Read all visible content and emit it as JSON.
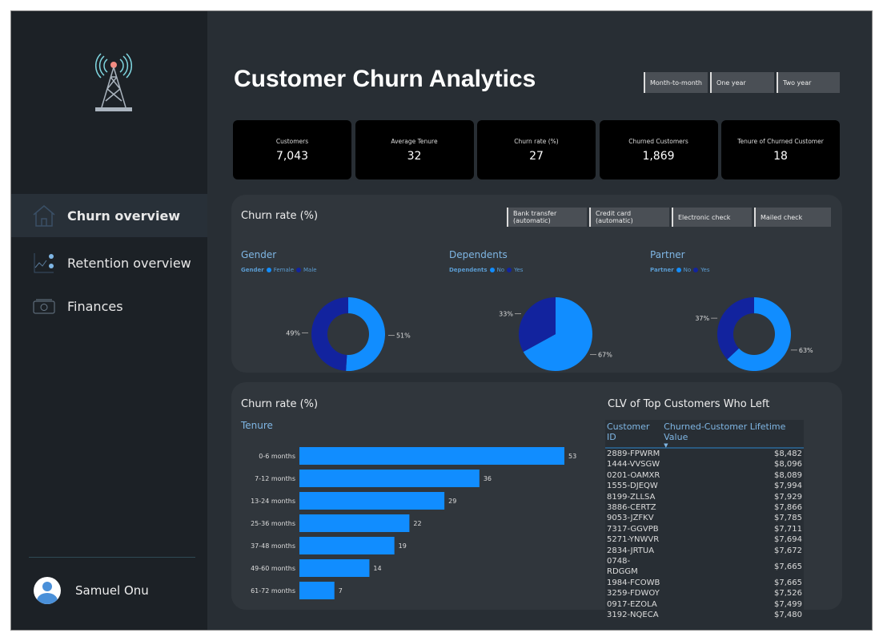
{
  "sidebar": {
    "items": [
      {
        "label": "Churn overview",
        "icon": "home-icon"
      },
      {
        "label": "Retention overview",
        "icon": "chart-icon"
      },
      {
        "label": "Finances",
        "icon": "money-icon"
      }
    ],
    "user": "Samuel Onu"
  },
  "header": {
    "title": "Customer Churn Analytics",
    "contract_slicers": [
      "Month-to-month",
      "One year",
      "Two year"
    ]
  },
  "kpis": [
    {
      "label": "Customers",
      "value": "7,043"
    },
    {
      "label": "Average Tenure",
      "value": "32"
    },
    {
      "label": "Churn rate (%)",
      "value": "27"
    },
    {
      "label": "Churned Customers",
      "value": "1,869"
    },
    {
      "label": "Tenure of Churned Customer",
      "value": "18"
    }
  ],
  "payment_slicers": [
    "Bank transfer (automatic)",
    "Credit card (automatic)",
    "Electronic check",
    "Mailed check"
  ],
  "colors": {
    "light": "#118dff",
    "dark": "#12239e"
  },
  "chart_data": [
    {
      "type": "pie",
      "title": "Churn rate (%)",
      "subtitle": "Gender",
      "legend_title": "Gender",
      "donut": true,
      "categories": [
        "Female",
        "Male"
      ],
      "values": [
        51,
        49
      ],
      "labels": [
        "51%",
        "49%"
      ]
    },
    {
      "type": "pie",
      "subtitle": "Dependents",
      "legend_title": "Dependents",
      "donut": false,
      "categories": [
        "No",
        "Yes"
      ],
      "values": [
        67,
        33
      ],
      "labels": [
        "67%",
        "33%"
      ]
    },
    {
      "type": "pie",
      "subtitle": "Partner",
      "legend_title": "Partner",
      "donut": true,
      "categories": [
        "No",
        "Yes"
      ],
      "values": [
        63,
        37
      ],
      "labels": [
        "63%",
        "37%"
      ]
    },
    {
      "type": "bar",
      "title": "Churn rate (%)",
      "subtitle": "Tenure",
      "orientation": "horizontal",
      "categories": [
        "0-6 months",
        "7-12 months",
        "13-24 months",
        "25-36 months",
        "37-48 months",
        "49-60 months",
        "61-72 months"
      ],
      "values": [
        53,
        36,
        29,
        22,
        19,
        14,
        7
      ]
    }
  ],
  "clv_table": {
    "title": "CLV of Top Customers Who Left",
    "columns": [
      "Customer ID",
      "Churned-Customer Lifetime Value"
    ],
    "sort": "descending",
    "rows": [
      [
        "2889-FPWRM",
        "$8,482"
      ],
      [
        "1444-VVSGW",
        "$8,096"
      ],
      [
        "0201-OAMXR",
        "$8,089"
      ],
      [
        "1555-DJEQW",
        "$7,994"
      ],
      [
        "8199-ZLLSA",
        "$7,929"
      ],
      [
        "3886-CERTZ",
        "$7,866"
      ],
      [
        "9053-JZFKV",
        "$7,785"
      ],
      [
        "7317-GGVPB",
        "$7,711"
      ],
      [
        "5271-YNWVR",
        "$7,694"
      ],
      [
        "2834-JRTUA",
        "$7,672"
      ],
      [
        "0748-RDGGM",
        "$7,665"
      ],
      [
        "1984-FCOWB",
        "$7,665"
      ],
      [
        "3259-FDWOY",
        "$7,526"
      ],
      [
        "0917-EZOLA",
        "$7,499"
      ],
      [
        "3192-NQECA",
        "$7,480"
      ]
    ]
  }
}
